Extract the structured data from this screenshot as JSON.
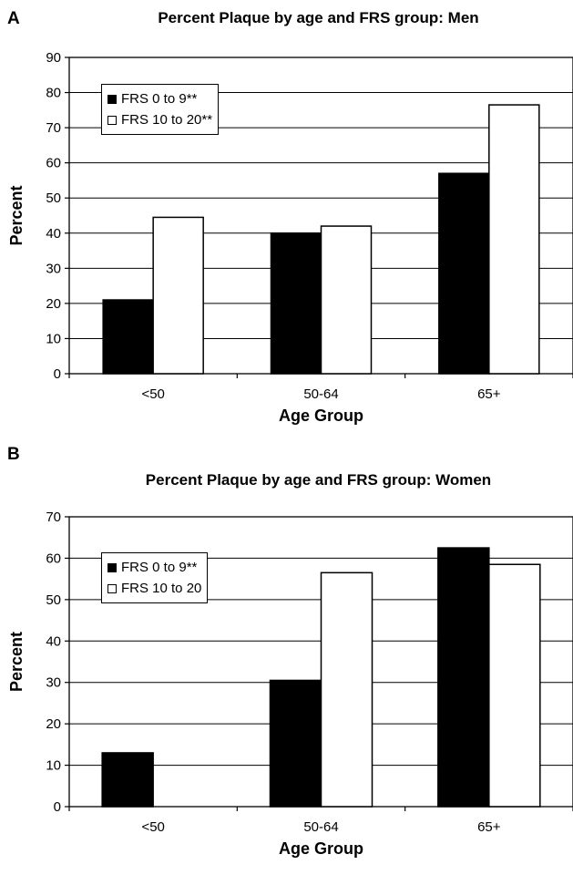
{
  "chart_data": [
    {
      "panel_label": "A",
      "type": "bar",
      "title": "Percent Plaque by age and FRS group: Men",
      "xlabel": "Age Group",
      "ylabel": "Percent",
      "categories": [
        "<50",
        "50-64",
        "65+"
      ],
      "series": [
        {
          "name": "FRS 0 to 9**",
          "values": [
            21,
            40,
            57
          ],
          "color": "#000000"
        },
        {
          "name": "FRS 10 to 20**",
          "values": [
            44.5,
            42,
            76.5
          ],
          "color": "#ffffff"
        }
      ],
      "ylim": [
        0,
        90
      ],
      "yticks": [
        0,
        10,
        20,
        30,
        40,
        50,
        60,
        70,
        80,
        90
      ],
      "grid": true,
      "legend_position": "top-left"
    },
    {
      "panel_label": "B",
      "type": "bar",
      "title": "Percent Plaque by age and FRS group: Women",
      "xlabel": "Age Group",
      "ylabel": "Percent",
      "categories": [
        "<50",
        "50-64",
        "65+"
      ],
      "series": [
        {
          "name": "FRS 0 to 9**",
          "values": [
            13,
            30.5,
            62.5
          ],
          "color": "#000000"
        },
        {
          "name": "FRS 10 to 20",
          "values": [
            null,
            56.5,
            58.5
          ],
          "color": "#ffffff"
        }
      ],
      "ylim": [
        0,
        70
      ],
      "yticks": [
        0,
        10,
        20,
        30,
        40,
        50,
        60,
        70
      ],
      "grid": true,
      "legend_position": "top-left"
    }
  ]
}
